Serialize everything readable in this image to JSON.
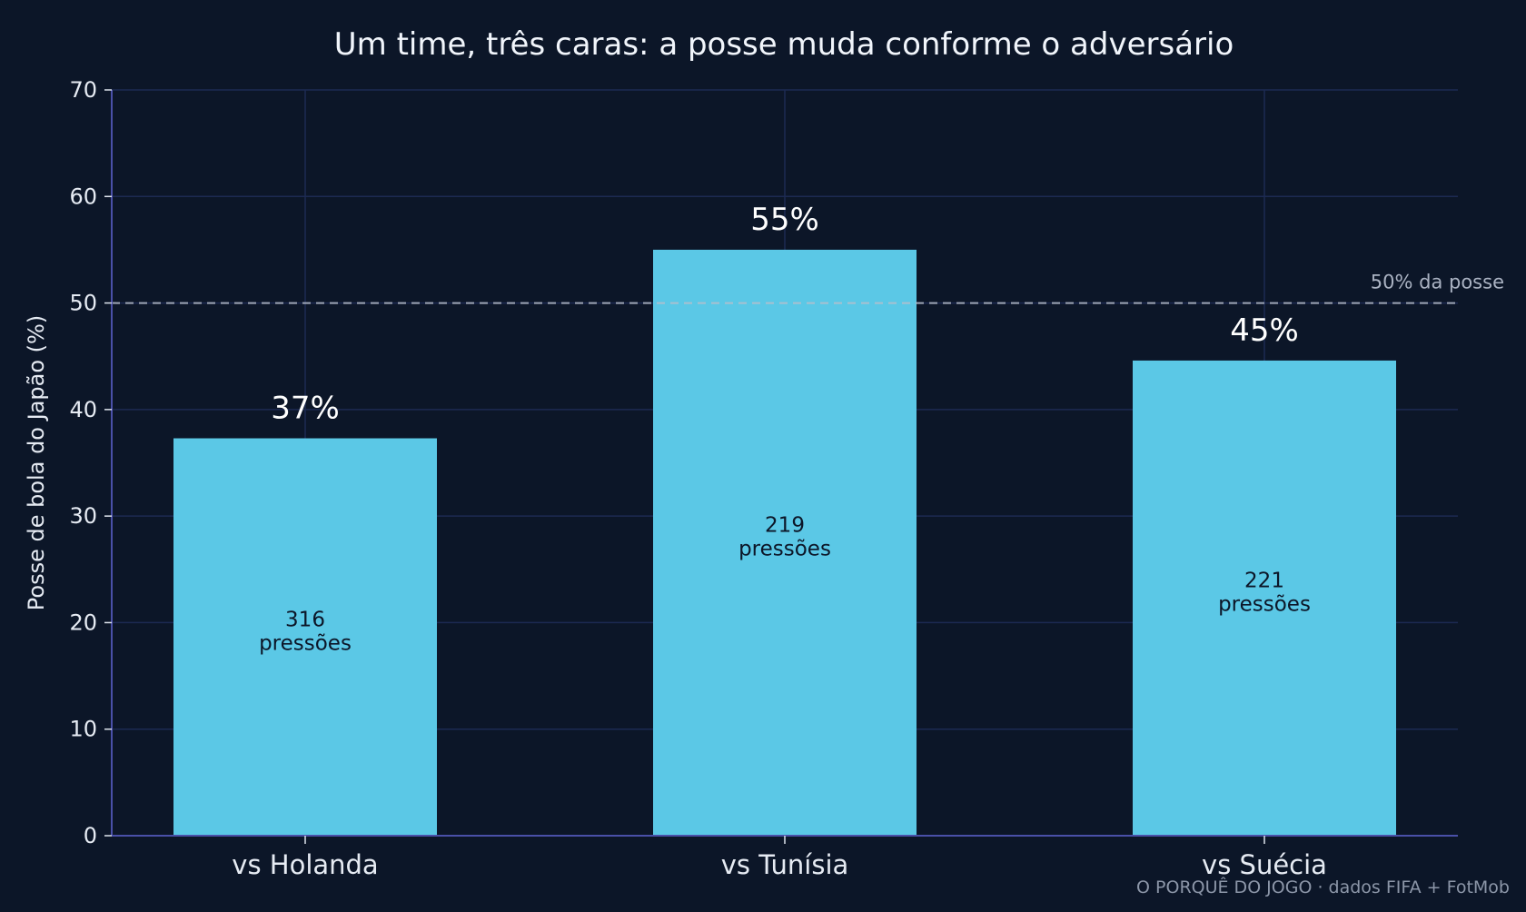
{
  "chart_data": {
    "type": "bar",
    "title": "Um time, três caras: a posse muda conforme o adversário",
    "xlabel": "",
    "ylabel": "Posse de bola do Japão (%)",
    "ylim": [
      0,
      70
    ],
    "yticks": [
      0,
      10,
      20,
      30,
      40,
      50,
      60,
      70
    ],
    "grid": true,
    "categories": [
      "vs Holanda",
      "vs Tunísia",
      "vs Suécia"
    ],
    "values": [
      37.3,
      55.0,
      44.6
    ],
    "value_labels": [
      "37%",
      "55%",
      "45%"
    ],
    "pressures": [
      316,
      219,
      221
    ],
    "pressure_unit": "pressões",
    "reference_line": {
      "value": 50,
      "label": "50% da posse"
    },
    "credit": "O PORQUÊ DO JOGO · dados FIFA + FotMob"
  },
  "colors": {
    "background": "#0c1628",
    "bar": "#5bc8e6",
    "grid": "#1c2a52",
    "axis": "#4a50a8",
    "reference": "#b7bfcc"
  }
}
